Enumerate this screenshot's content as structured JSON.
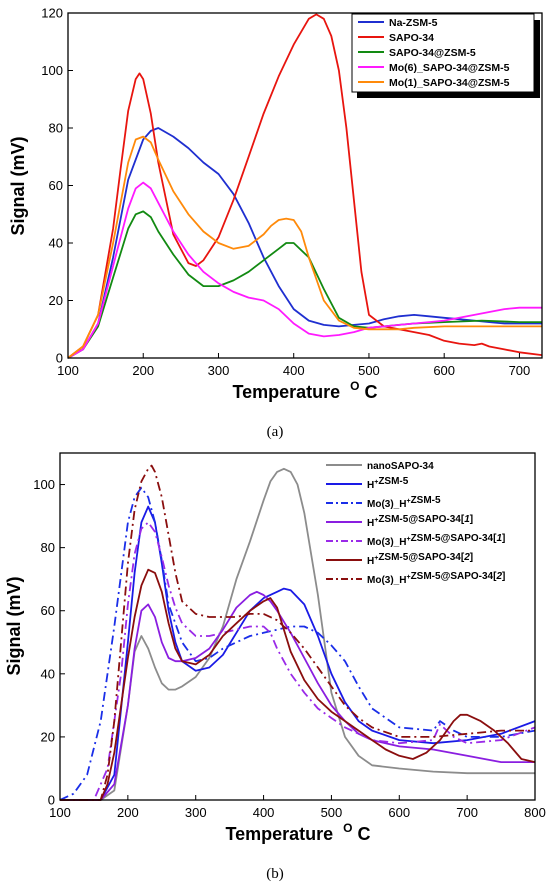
{
  "chart_data": [
    {
      "type": "line",
      "panel_label": "(a)",
      "xlabel": "Temperature",
      "xunit": "C",
      "ylabel": "Signal (mV)",
      "xlim": [
        100,
        730
      ],
      "ylim": [
        0,
        120
      ],
      "xticks": [
        100,
        200,
        300,
        400,
        500,
        600,
        700
      ],
      "yticks": [
        0,
        20,
        40,
        60,
        80,
        100,
        120
      ],
      "legend_position": "top-right",
      "series": [
        {
          "name": "Na-ZSM-5",
          "color": "#1f2fd0",
          "dash": "solid",
          "x": [
            100,
            120,
            140,
            160,
            180,
            200,
            210,
            220,
            240,
            260,
            280,
            300,
            320,
            340,
            360,
            380,
            400,
            420,
            440,
            460,
            480,
            500,
            520,
            540,
            560,
            580,
            600,
            620,
            640,
            660,
            680,
            700,
            730
          ],
          "y": [
            0,
            3,
            12,
            35,
            62,
            76,
            79,
            80,
            77,
            73,
            68,
            64,
            57,
            47,
            35,
            25,
            17,
            13,
            11.5,
            11,
            11.5,
            12,
            13.5,
            14.5,
            15,
            14.5,
            14,
            13.5,
            13,
            12.5,
            12,
            12,
            12
          ]
        },
        {
          "name": "SAPO-34",
          "color": "#e8150f",
          "dash": "solid",
          "x": [
            100,
            120,
            140,
            160,
            170,
            180,
            190,
            195,
            200,
            210,
            220,
            240,
            260,
            270,
            280,
            300,
            320,
            340,
            360,
            380,
            400,
            420,
            430,
            440,
            450,
            460,
            470,
            480,
            490,
            500,
            520,
            540,
            560,
            580,
            600,
            620,
            640,
            650,
            660,
            680,
            700,
            730
          ],
          "y": [
            0,
            4,
            15,
            45,
            66,
            86,
            97,
            99,
            97,
            85,
            68,
            43,
            33,
            32,
            34,
            42,
            55,
            70,
            85,
            98,
            109,
            118,
            119.5,
            118,
            112,
            100,
            80,
            55,
            30,
            15,
            11,
            10,
            9,
            8,
            6,
            5,
            4.5,
            5,
            4,
            3,
            2,
            1
          ]
        },
        {
          "name": "SAPO-34@ZSM-5",
          "color": "#128a12",
          "dash": "solid",
          "x": [
            100,
            120,
            140,
            160,
            180,
            190,
            200,
            210,
            220,
            240,
            260,
            280,
            300,
            320,
            340,
            360,
            380,
            390,
            400,
            420,
            440,
            460,
            480,
            500,
            520,
            540,
            560,
            600,
            650,
            700,
            730
          ],
          "y": [
            0,
            3,
            11,
            28,
            45,
            50,
            51,
            49,
            44,
            36,
            29,
            25,
            25,
            27,
            30,
            34,
            38,
            40,
            40,
            35,
            24,
            14,
            11,
            10.5,
            11,
            11.5,
            12,
            12.5,
            13,
            12.5,
            12.5
          ]
        },
        {
          "name": "Mo(6)_SAPO-34@ZSM-5",
          "color": "#ff1aff",
          "dash": "solid",
          "x": [
            100,
            120,
            140,
            160,
            180,
            190,
            200,
            210,
            220,
            240,
            260,
            280,
            300,
            320,
            340,
            360,
            380,
            400,
            420,
            440,
            460,
            480,
            500,
            520,
            540,
            560,
            580,
            600,
            620,
            640,
            660,
            680,
            700,
            730
          ],
          "y": [
            0,
            3,
            12,
            32,
            52,
            59,
            61,
            59,
            54,
            44,
            36,
            30,
            26,
            23,
            21,
            20,
            17,
            12,
            8.5,
            7.5,
            8,
            9,
            10.5,
            11,
            11.5,
            12,
            12.5,
            13,
            14,
            15,
            16,
            17,
            17.5,
            17.5
          ]
        },
        {
          "name": "Mo(1)_SAPO-34@ZSM-5",
          "color": "#ff8a0a",
          "dash": "solid",
          "x": [
            100,
            120,
            140,
            160,
            180,
            190,
            200,
            210,
            220,
            240,
            260,
            280,
            300,
            320,
            340,
            360,
            370,
            380,
            390,
            400,
            410,
            420,
            440,
            460,
            480,
            500,
            520,
            540,
            560,
            600,
            650,
            700,
            730
          ],
          "y": [
            0,
            4,
            15,
            40,
            68,
            76,
            77,
            75,
            69,
            58,
            50,
            44,
            40,
            38,
            39,
            43,
            46,
            48,
            48.5,
            48,
            44,
            35,
            20,
            13,
            10.5,
            10,
            10,
            10,
            10.5,
            11,
            11,
            11,
            11
          ]
        }
      ]
    },
    {
      "type": "line",
      "panel_label": "(b)",
      "xlabel": "Temperature",
      "xunit": "C",
      "ylabel": "Signal (mV)",
      "xlim": [
        100,
        800
      ],
      "ylim": [
        0,
        110
      ],
      "xticks": [
        100,
        200,
        300,
        400,
        500,
        600,
        700,
        800
      ],
      "yticks": [
        0,
        20,
        40,
        60,
        80,
        100
      ],
      "legend_position": "top-right",
      "series": [
        {
          "name": "nanoSAPO-34",
          "label_html": [
            "nanoSAPO-34"
          ],
          "color": "#8c8c8c",
          "dash": "solid",
          "x": [
            100,
            160,
            180,
            200,
            210,
            220,
            230,
            240,
            250,
            260,
            270,
            280,
            300,
            320,
            340,
            360,
            380,
            400,
            410,
            420,
            430,
            440,
            450,
            460,
            480,
            500,
            520,
            540,
            560,
            600,
            650,
            700,
            800
          ],
          "y": [
            0,
            0,
            3,
            30,
            47,
            52,
            48,
            42,
            37,
            35,
            35,
            36,
            39,
            45,
            55,
            70,
            82,
            95,
            101,
            104,
            105,
            104,
            100,
            91,
            65,
            34,
            20,
            14,
            11,
            10,
            9,
            8.5,
            8.5
          ]
        },
        {
          "name": "H+ZSM-5",
          "color": "#1a1ae6",
          "dash": "solid",
          "x": [
            100,
            160,
            180,
            200,
            210,
            220,
            230,
            240,
            250,
            260,
            270,
            280,
            300,
            320,
            340,
            360,
            380,
            400,
            420,
            430,
            440,
            460,
            480,
            500,
            520,
            540,
            560,
            600,
            650,
            700,
            750,
            800
          ],
          "y": [
            0,
            0,
            8,
            50,
            72,
            88,
            93,
            88,
            75,
            60,
            50,
            44,
            41,
            42,
            46,
            53,
            60,
            64,
            66,
            67,
            66.5,
            62,
            52,
            40,
            31,
            25,
            22,
            19,
            18,
            19,
            21,
            25
          ]
        },
        {
          "name": "Mo(3)_H+ZSM-5",
          "color": "#1a2ee8",
          "dash": "dashdot",
          "x": [
            100,
            120,
            140,
            160,
            180,
            200,
            210,
            220,
            230,
            240,
            250,
            260,
            280,
            300,
            320,
            340,
            360,
            380,
            400,
            420,
            440,
            460,
            480,
            500,
            520,
            540,
            560,
            600,
            650,
            660,
            680,
            700,
            750,
            800
          ],
          "y": [
            0,
            2,
            8,
            25,
            55,
            88,
            96,
            99,
            96,
            88,
            76,
            62,
            50,
            44,
            45,
            48,
            50,
            52,
            53,
            54,
            55,
            55,
            53,
            49,
            44,
            36,
            29,
            23,
            22,
            25,
            22,
            20,
            20,
            22
          ]
        },
        {
          "name": "H+ZSM-5@SAPO-34[1]",
          "color": "#8a1ee0",
          "dash": "solid",
          "x": [
            100,
            160,
            180,
            200,
            210,
            220,
            230,
            240,
            250,
            260,
            270,
            280,
            300,
            320,
            340,
            360,
            380,
            390,
            400,
            410,
            420,
            440,
            460,
            480,
            500,
            520,
            540,
            560,
            600,
            650,
            700,
            750,
            800
          ],
          "y": [
            0,
            0,
            5,
            30,
            48,
            60,
            62,
            58,
            50,
            45,
            44,
            44,
            45,
            48,
            54,
            61,
            65,
            66,
            65,
            63,
            60,
            53,
            45,
            37,
            30,
            25,
            21,
            19,
            17,
            16,
            14,
            12,
            12
          ]
        },
        {
          "name": "Mo(3)_H+ZSM-5@SAPO-34[1]",
          "color": "#9a2ae8",
          "dash": "dashdot",
          "x": [
            100,
            150,
            170,
            190,
            200,
            210,
            220,
            230,
            240,
            250,
            260,
            270,
            280,
            300,
            320,
            340,
            360,
            380,
            400,
            410,
            420,
            440,
            460,
            480,
            500,
            520,
            540,
            560,
            600,
            650,
            660,
            680,
            700,
            750,
            800
          ],
          "y": [
            0,
            0,
            10,
            40,
            62,
            78,
            86,
            88,
            85,
            77,
            68,
            61,
            56,
            52,
            52,
            53,
            54,
            55,
            55,
            53,
            48,
            40,
            34,
            29,
            26,
            23,
            21,
            19,
            18,
            19,
            24,
            20,
            18,
            19,
            23
          ]
        },
        {
          "name": "H+ZSM-5@SAPO-34[2]",
          "color": "#8a0e0e",
          "dash": "solid",
          "x": [
            100,
            160,
            170,
            180,
            190,
            200,
            210,
            220,
            230,
            240,
            250,
            260,
            270,
            280,
            300,
            320,
            340,
            360,
            380,
            400,
            410,
            420,
            440,
            460,
            480,
            500,
            520,
            540,
            560,
            580,
            600,
            620,
            640,
            660,
            680,
            690,
            700,
            720,
            740,
            760,
            780,
            800
          ],
          "y": [
            0,
            0,
            5,
            15,
            30,
            45,
            58,
            68,
            73,
            72,
            66,
            56,
            48,
            44,
            43,
            46,
            52,
            56,
            60,
            63,
            64,
            61,
            47,
            38,
            32,
            28,
            25,
            22,
            19,
            16,
            14,
            13,
            15,
            19,
            25,
            27,
            27,
            25,
            22,
            18,
            13,
            12
          ]
        },
        {
          "name": "Mo(3)_H+ZSM-5@SAPO-34[2]",
          "color": "#8a0e0e",
          "dash": "dashdot",
          "x": [
            100,
            160,
            170,
            180,
            190,
            200,
            210,
            220,
            230,
            235,
            240,
            250,
            260,
            270,
            280,
            300,
            320,
            340,
            360,
            380,
            400,
            420,
            440,
            460,
            480,
            500,
            520,
            540,
            560,
            600,
            650,
            700,
            750,
            800
          ],
          "y": [
            0,
            0,
            8,
            25,
            50,
            75,
            92,
            101,
            105,
            106,
            104,
            96,
            84,
            72,
            63,
            59,
            58,
            58,
            58,
            59,
            59,
            57,
            53,
            48,
            42,
            36,
            30,
            26,
            23,
            20,
            20,
            21,
            22,
            22
          ]
        }
      ]
    }
  ]
}
